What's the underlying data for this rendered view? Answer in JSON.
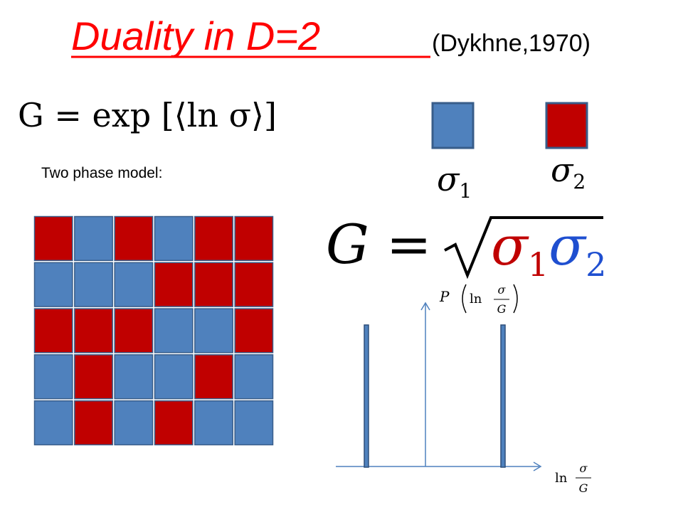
{
  "title": {
    "main": "Duality in D=2",
    "citation": "(Dykhne,1970)"
  },
  "formula_mean": "G = exp [⟨ln σ⟩]",
  "model_label": "Two phase model:",
  "phases": [
    {
      "symbol": "σ",
      "subscript": "1",
      "color": "#4f81bd"
    },
    {
      "symbol": "σ",
      "subscript": "2",
      "color": "#c00000"
    }
  ],
  "formula_result": {
    "lhs": "G =",
    "factors": [
      {
        "symbol": "σ",
        "subscript": "1",
        "color": "#c00000"
      },
      {
        "symbol": "σ",
        "subscript": "2",
        "color": "#1f4fd0"
      }
    ]
  },
  "plot": {
    "y_label": {
      "prefix": "P",
      "ln": "ln",
      "numerator": "σ",
      "denominator": "G"
    },
    "x_label": {
      "ln": "ln",
      "numerator": "σ",
      "denominator": "G"
    }
  }
}
